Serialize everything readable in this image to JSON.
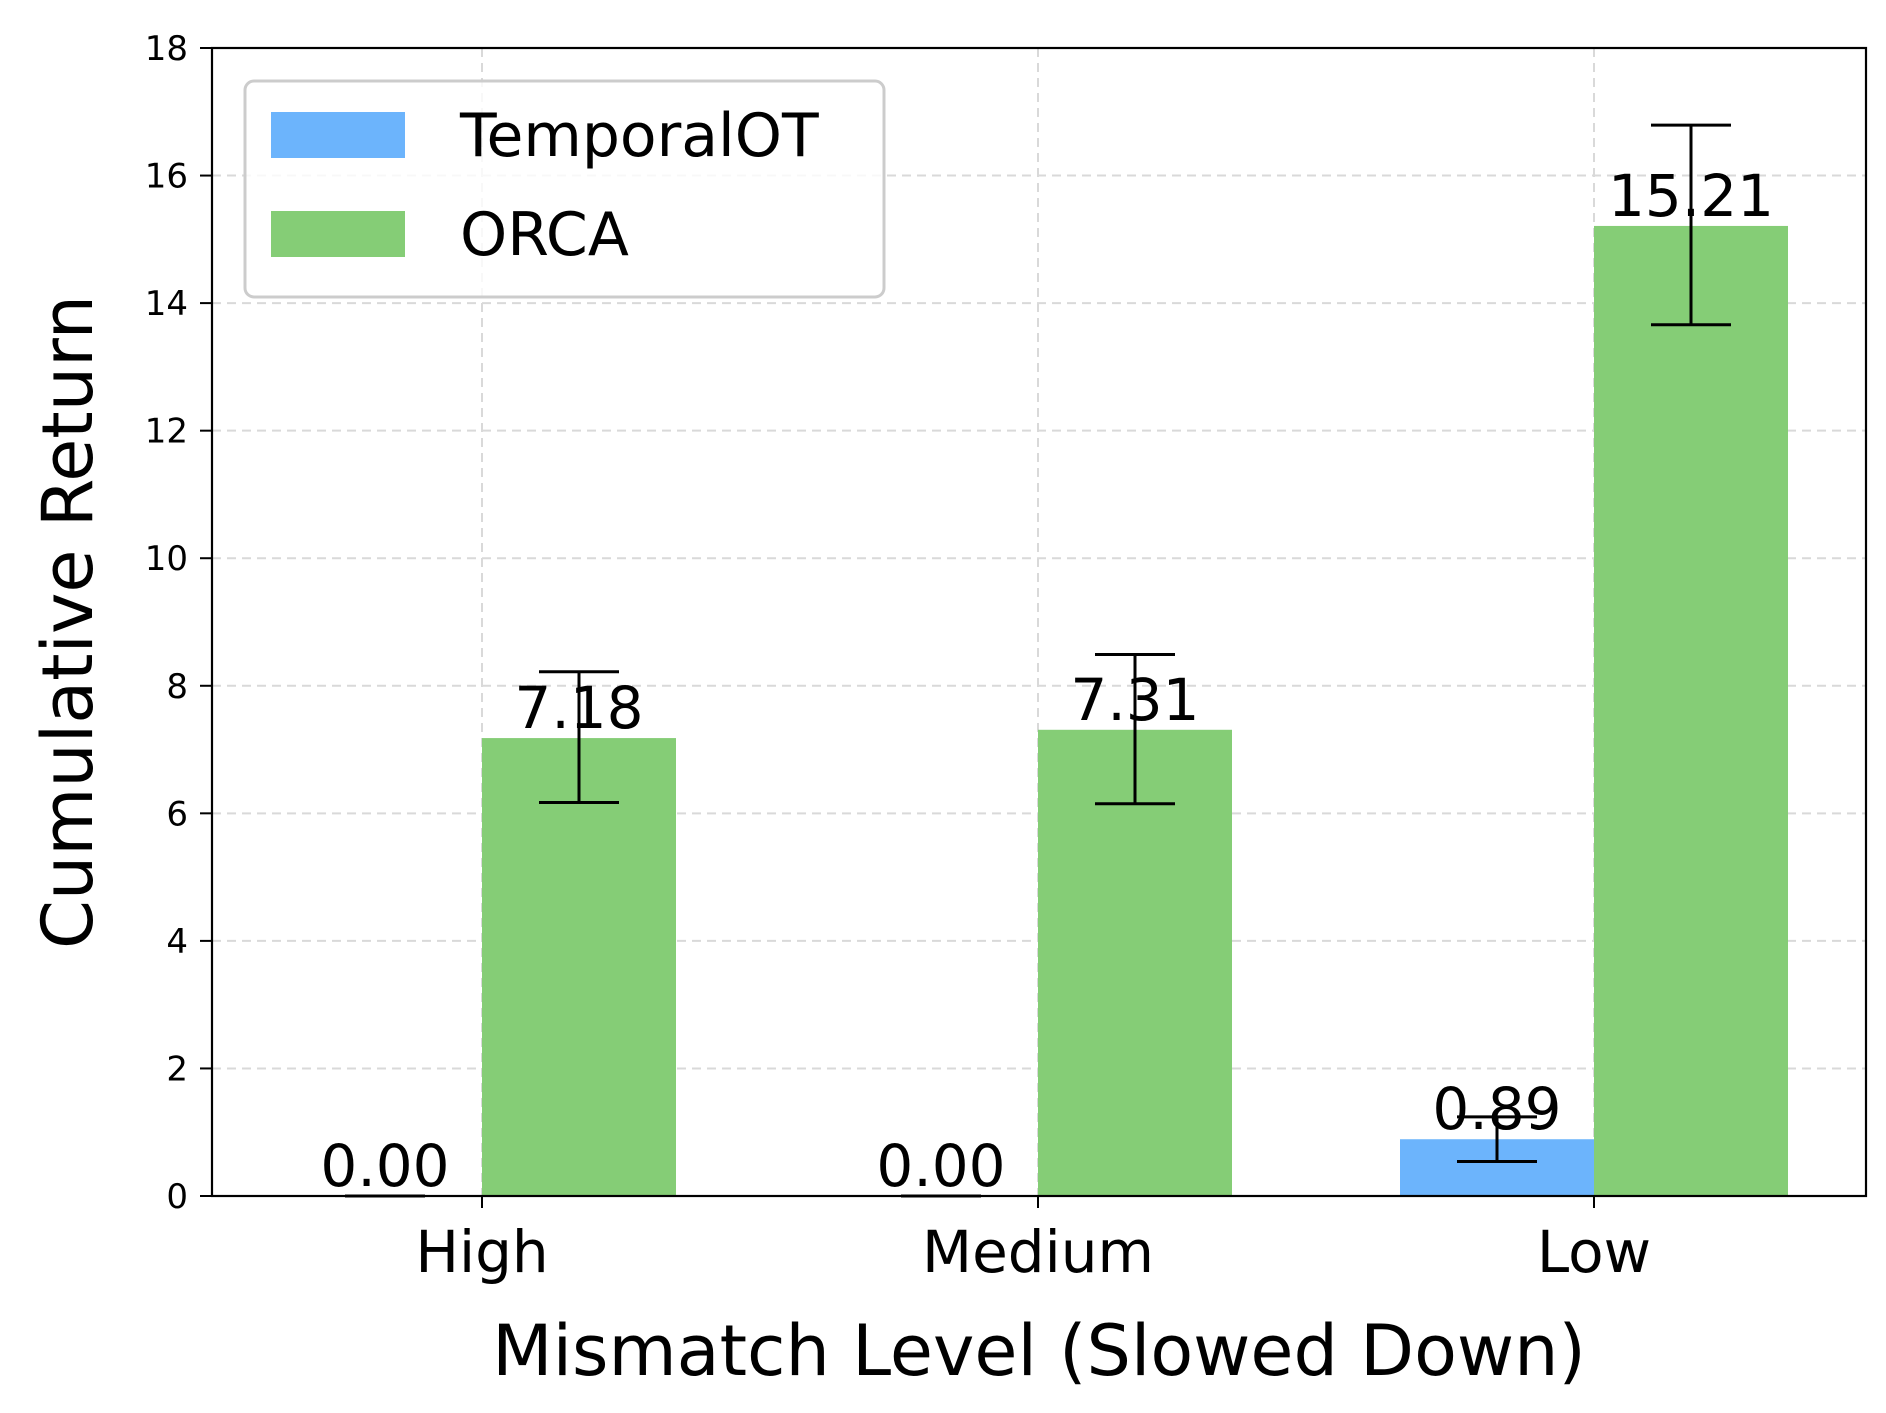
{
  "chart_data": {
    "type": "bar",
    "title": "",
    "xlabel": "Mismatch Level (Slowed Down)",
    "ylabel": "Cumulative Return",
    "categories": [
      "High",
      "Medium",
      "Low"
    ],
    "series": [
      {
        "name": "TemporalOT",
        "color": "#6cb4fc",
        "values": [
          0.0,
          0.0,
          0.89
        ],
        "error_low": [
          0.0,
          0.0,
          0.54
        ],
        "error_high": [
          0.0,
          0.0,
          1.24
        ],
        "labels": [
          "0.00",
          "0.00",
          "0.89"
        ]
      },
      {
        "name": "ORCA",
        "color": "#85cd76",
        "values": [
          7.18,
          7.31,
          15.21
        ],
        "error_low": [
          6.17,
          6.15,
          13.66
        ],
        "error_high": [
          8.22,
          8.49,
          16.79
        ],
        "labels": [
          "7.18",
          "7.31",
          "15.21"
        ]
      }
    ],
    "ylim": [
      0,
      18
    ],
    "yticks": [
      "0",
      "2",
      "4",
      "6",
      "8",
      "10",
      "12",
      "14",
      "16",
      "18"
    ],
    "grid": true,
    "legend_position": "top-left"
  }
}
